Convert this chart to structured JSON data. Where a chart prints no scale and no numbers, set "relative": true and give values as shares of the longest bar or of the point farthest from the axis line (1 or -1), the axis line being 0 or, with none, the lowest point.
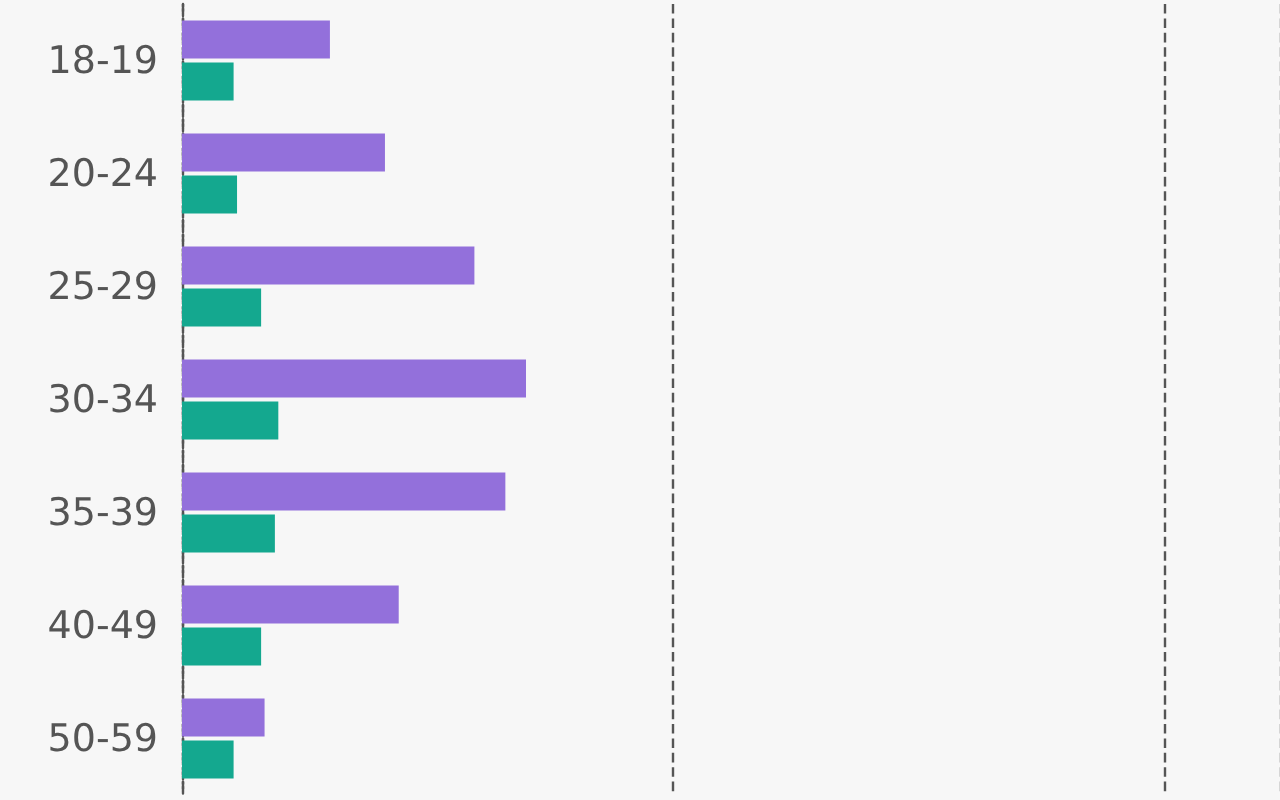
{
  "chart_data": {
    "type": "bar",
    "orientation": "horizontal",
    "relative": true,
    "grid": "x",
    "categories": [
      "18-19",
      "20-24",
      "25-29",
      "30-34",
      "35-39",
      "40-49",
      "50-59"
    ],
    "series": [
      {
        "color": "#9370db",
        "values": [
          0.43,
          0.59,
          0.85,
          1,
          0.94,
          0.63,
          0.24
        ]
      },
      {
        "color": "#14a88f",
        "values": [
          0.15,
          0.16,
          0.23,
          0.28,
          0.27,
          0.23,
          0.15
        ]
      }
    ]
  }
}
